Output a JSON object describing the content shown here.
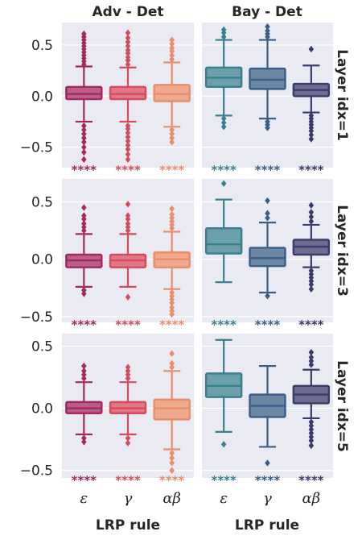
{
  "chart_data": {
    "type": "box",
    "col_titles": [
      "Adv - Det",
      "Bay - Det"
    ],
    "row_titles": [
      "Layer idx=1",
      "Layer idx=3",
      "Layer idx=5"
    ],
    "xlabel": "LRP rule",
    "categories": [
      "ε",
      "γ",
      "αβ"
    ],
    "significance": "****",
    "grid": true,
    "palette": {
      "Adv - Det": [
        "#a3285f",
        "#d64b5c",
        "#e88c6a"
      ],
      "Bay - Det": [
        "#3a7f8e",
        "#3a5f86",
        "#3b3a6b"
      ]
    },
    "rows": [
      {
        "yticks": [
          0.5,
          0.0,
          -0.5
        ],
        "ytick_labels": [
          "0.5",
          "0.0",
          "−0.5"
        ],
        "ylim": [
          -0.7,
          0.72
        ],
        "panels": [
          {
            "column": "Adv - Det",
            "boxes": [
              {
                "q1": -0.03,
                "median": 0.02,
                "q3": 0.09,
                "whisker_low": -0.25,
                "whisker_high": 0.29,
                "outliers": [
                  0.31,
                  0.34,
                  0.37,
                  0.4,
                  0.43,
                  0.46,
                  0.49,
                  0.52,
                  0.55,
                  0.58,
                  0.61,
                  -0.29,
                  -0.33,
                  -0.37,
                  -0.41,
                  -0.45,
                  -0.5,
                  -0.55,
                  -0.62
                ]
              },
              {
                "q1": -0.03,
                "median": 0.02,
                "q3": 0.09,
                "whisker_low": -0.25,
                "whisker_high": 0.28,
                "outliers": [
                  0.31,
                  0.35,
                  0.38,
                  0.42,
                  0.45,
                  0.49,
                  0.53,
                  0.57,
                  0.62,
                  -0.29,
                  -0.32,
                  -0.36,
                  -0.4,
                  -0.44,
                  -0.48,
                  -0.52,
                  -0.57,
                  -0.62
                ]
              },
              {
                "q1": -0.05,
                "median": 0.02,
                "q3": 0.11,
                "whisker_low": -0.3,
                "whisker_high": 0.33,
                "outliers": [
                  0.36,
                  0.4,
                  0.44,
                  0.47,
                  0.51,
                  0.55,
                  -0.33,
                  -0.37,
                  -0.41,
                  -0.45
                ]
              }
            ]
          },
          {
            "column": "Bay - Det",
            "boxes": [
              {
                "q1": 0.09,
                "median": 0.18,
                "q3": 0.28,
                "whisker_low": -0.19,
                "whisker_high": 0.55,
                "outliers": [
                  0.58,
                  0.62,
                  0.65,
                  -0.22,
                  -0.26,
                  -0.3
                ]
              },
              {
                "q1": 0.07,
                "median": 0.16,
                "q3": 0.27,
                "whisker_low": -0.22,
                "whisker_high": 0.55,
                "outliers": [
                  0.58,
                  0.61,
                  0.64,
                  0.68,
                  -0.25,
                  -0.28,
                  -0.31
                ]
              },
              {
                "q1": 0.0,
                "median": 0.06,
                "q3": 0.12,
                "whisker_low": -0.16,
                "whisker_high": 0.3,
                "outliers": [
                  0.46,
                  -0.19,
                  -0.22,
                  -0.25,
                  -0.28,
                  -0.31,
                  -0.34,
                  -0.38,
                  -0.42
                ]
              }
            ]
          }
        ]
      },
      {
        "yticks": [
          0.5,
          0.0,
          -0.5
        ],
        "ytick_labels": [
          "0.5",
          "0.0",
          "−0.5"
        ],
        "ylim": [
          -0.55,
          0.7
        ],
        "panels": [
          {
            "column": "Adv - Det",
            "boxes": [
              {
                "q1": -0.07,
                "median": -0.01,
                "q3": 0.04,
                "whisker_low": -0.24,
                "whisker_high": 0.22,
                "outliers": [
                  0.25,
                  0.28,
                  0.31,
                  0.35,
                  0.38,
                  0.45,
                  -0.27,
                  -0.3
                ]
              },
              {
                "q1": -0.07,
                "median": -0.01,
                "q3": 0.04,
                "whisker_low": -0.24,
                "whisker_high": 0.22,
                "outliers": [
                  0.25,
                  0.28,
                  0.31,
                  0.35,
                  0.38,
                  0.48,
                  -0.33
                ]
              },
              {
                "q1": -0.07,
                "median": 0.0,
                "q3": 0.06,
                "whisker_low": -0.26,
                "whisker_high": 0.24,
                "outliers": [
                  0.27,
                  0.3,
                  0.33,
                  0.36,
                  0.39,
                  0.44,
                  -0.29,
                  -0.32,
                  -0.35,
                  -0.38,
                  -0.42,
                  -0.45,
                  -0.48
                ]
              }
            ]
          },
          {
            "column": "Bay - Det",
            "boxes": [
              {
                "q1": 0.05,
                "median": 0.13,
                "q3": 0.27,
                "whisker_low": -0.2,
                "whisker_high": 0.52,
                "outliers": [
                  0.66
                ]
              },
              {
                "q1": -0.06,
                "median": 0.01,
                "q3": 0.1,
                "whisker_low": -0.29,
                "whisker_high": 0.32,
                "outliers": [
                  0.36,
                  0.4,
                  0.51,
                  -0.32
                ]
              },
              {
                "q1": 0.04,
                "median": 0.11,
                "q3": 0.17,
                "whisker_low": -0.07,
                "whisker_high": 0.3,
                "outliers": [
                  0.33,
                  0.37,
                  0.41,
                  0.47,
                  -0.1,
                  -0.13,
                  -0.16,
                  -0.19,
                  -0.22,
                  -0.26
                ]
              }
            ]
          }
        ]
      },
      {
        "yticks": [
          0.5,
          0.0,
          -0.5
        ],
        "ytick_labels": [
          "0.5",
          "0.0",
          "−0.5"
        ],
        "ylim": [
          -0.56,
          0.6
        ],
        "panels": [
          {
            "column": "Adv - Det",
            "boxes": [
              {
                "q1": -0.04,
                "median": 0.0,
                "q3": 0.05,
                "whisker_low": -0.21,
                "whisker_high": 0.21,
                "outliers": [
                  0.24,
                  0.27,
                  0.3,
                  0.34,
                  -0.24,
                  -0.27
                ]
              },
              {
                "q1": -0.04,
                "median": 0.0,
                "q3": 0.05,
                "whisker_low": -0.21,
                "whisker_high": 0.21,
                "outliers": [
                  0.24,
                  0.27,
                  0.3,
                  0.33,
                  -0.24,
                  -0.28
                ]
              },
              {
                "q1": -0.09,
                "median": 0.0,
                "q3": 0.07,
                "whisker_low": -0.33,
                "whisker_high": 0.3,
                "outliers": [
                  0.33,
                  0.36,
                  0.44,
                  -0.36,
                  -0.4,
                  -0.44,
                  -0.5
                ]
              }
            ]
          },
          {
            "column": "Bay - Det",
            "boxes": [
              {
                "q1": 0.09,
                "median": 0.18,
                "q3": 0.28,
                "whisker_low": -0.19,
                "whisker_high": 0.55,
                "outliers": [
                  -0.29
                ]
              },
              {
                "q1": -0.07,
                "median": 0.02,
                "q3": 0.11,
                "whisker_low": -0.31,
                "whisker_high": 0.34,
                "outliers": [
                  -0.44
                ]
              },
              {
                "q1": 0.04,
                "median": 0.11,
                "q3": 0.18,
                "whisker_low": -0.08,
                "whisker_high": 0.31,
                "outliers": [
                  0.35,
                  0.38,
                  0.41,
                  0.45,
                  -0.11,
                  -0.14,
                  -0.17,
                  -0.2,
                  -0.23,
                  -0.26,
                  -0.3
                ]
              }
            ]
          }
        ]
      }
    ]
  }
}
